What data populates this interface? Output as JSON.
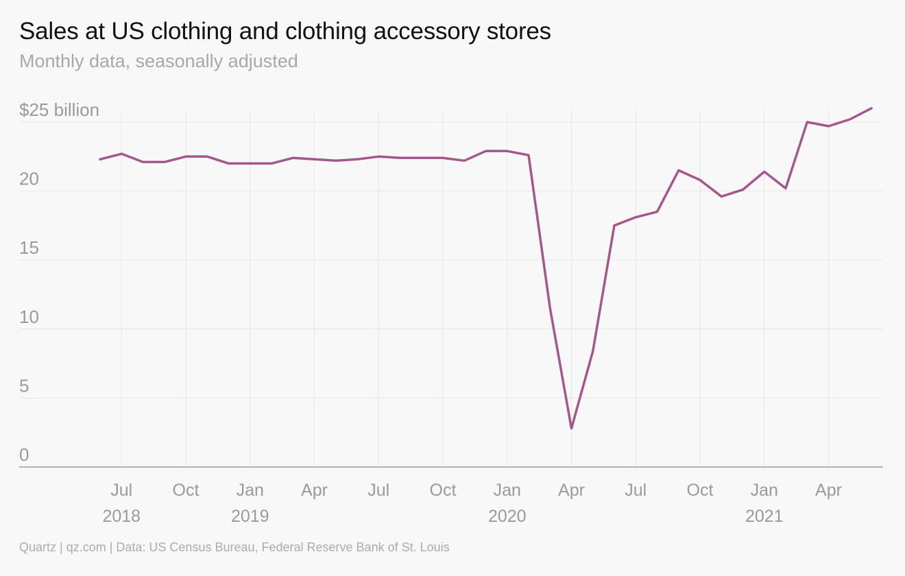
{
  "header": {
    "title": "Sales at US clothing and clothing accessory stores",
    "subtitle": "Monthly data, seasonally adjusted"
  },
  "footer": {
    "source": "Quartz | qz.com | Data: US Census Bureau, Federal Reserve Bank of St. Louis"
  },
  "colors": {
    "line": "#a5578c",
    "grid": "#e6e6e6",
    "axis": "#9a9a9a",
    "labels": "#9a9a9a"
  },
  "chart_data": {
    "type": "line",
    "title": "Sales at US clothing and clothing accessory stores",
    "subtitle": "Monthly data, seasonally adjusted",
    "xlabel": "",
    "ylabel": "",
    "ylim": [
      0,
      25
    ],
    "xlim": [
      "2018-06",
      "2021-06"
    ],
    "grid": true,
    "y_ticks": [
      {
        "value": 0,
        "label": "0"
      },
      {
        "value": 5,
        "label": "5"
      },
      {
        "value": 10,
        "label": "10"
      },
      {
        "value": 15,
        "label": "15"
      },
      {
        "value": 20,
        "label": "20"
      },
      {
        "value": 25,
        "label": "$25 billion"
      }
    ],
    "x_ticks": [
      {
        "date": "2018-07",
        "label": "Jul",
        "year": "2018"
      },
      {
        "date": "2018-10",
        "label": "Oct",
        "year": ""
      },
      {
        "date": "2019-01",
        "label": "Jan",
        "year": "2019"
      },
      {
        "date": "2019-04",
        "label": "Apr",
        "year": ""
      },
      {
        "date": "2019-07",
        "label": "Jul",
        "year": ""
      },
      {
        "date": "2019-10",
        "label": "Oct",
        "year": ""
      },
      {
        "date": "2020-01",
        "label": "Jan",
        "year": "2020"
      },
      {
        "date": "2020-04",
        "label": "Apr",
        "year": ""
      },
      {
        "date": "2020-07",
        "label": "Jul",
        "year": ""
      },
      {
        "date": "2020-10",
        "label": "Oct",
        "year": ""
      },
      {
        "date": "2021-01",
        "label": "Jan",
        "year": "2021"
      },
      {
        "date": "2021-04",
        "label": "Apr",
        "year": ""
      }
    ],
    "x": [
      "2018-06",
      "2018-07",
      "2018-08",
      "2018-09",
      "2018-10",
      "2018-11",
      "2018-12",
      "2019-01",
      "2019-02",
      "2019-03",
      "2019-04",
      "2019-05",
      "2019-06",
      "2019-07",
      "2019-08",
      "2019-09",
      "2019-10",
      "2019-11",
      "2019-12",
      "2020-01",
      "2020-02",
      "2020-03",
      "2020-04",
      "2020-05",
      "2020-06",
      "2020-07",
      "2020-08",
      "2020-09",
      "2020-10",
      "2020-11",
      "2020-12",
      "2021-01",
      "2021-02",
      "2021-03",
      "2021-04",
      "2021-05",
      "2021-06"
    ],
    "series": [
      {
        "values": [
          22.3,
          22.7,
          22.1,
          22.1,
          22.5,
          22.5,
          22.0,
          22.0,
          22.0,
          22.4,
          22.3,
          22.2,
          22.3,
          22.5,
          22.4,
          22.4,
          22.4,
          22.2,
          22.9,
          22.9,
          22.6,
          11.5,
          2.8,
          8.4,
          17.5,
          18.1,
          18.5,
          21.5,
          20.8,
          19.6,
          20.1,
          21.4,
          20.2,
          25.0,
          24.7,
          25.2,
          26.0
        ]
      }
    ]
  }
}
